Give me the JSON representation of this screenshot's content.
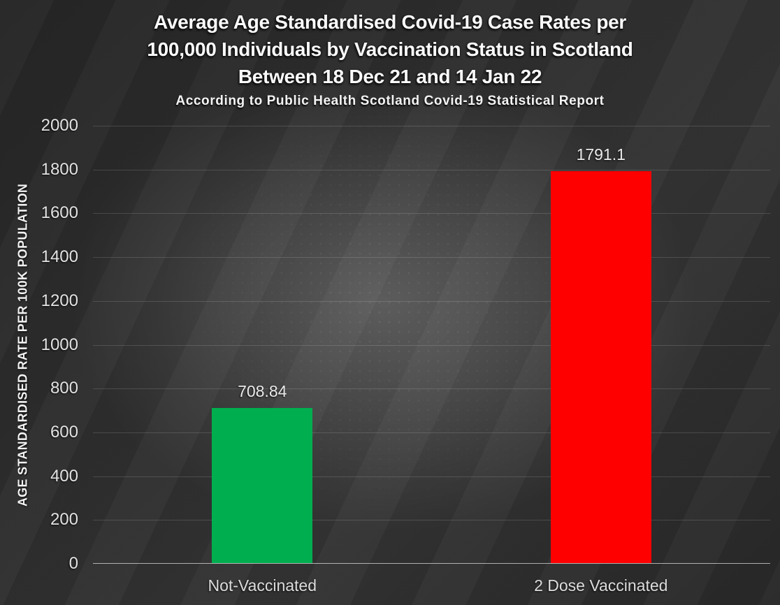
{
  "slide": {
    "title_lines": [
      "Average Age Standardised Covid-19 Case Rates per",
      "100,000 Individuals by Vaccination Status in Scotland",
      "Between 18 Dec 21 and 14 Jan 22"
    ],
    "subtitle": "According to Public Health Scotland Covid-19 Statistical Report"
  },
  "chart_data": {
    "type": "bar",
    "title": "Average Age Standardised Covid-19 Case Rates per 100,000 Individuals by Vaccination Status in Scotland Between 18 Dec 21 and 14 Jan 22",
    "subtitle": "According to Public Health Scotland Covid-19 Statistical Report",
    "categories": [
      "Not-Vaccinated",
      "2 Dose Vaccinated"
    ],
    "values": [
      708.84,
      1791.1
    ],
    "value_labels": [
      "708.84",
      "1791.1"
    ],
    "bar_colors": [
      "#00ae4f",
      "#ff0000"
    ],
    "xlabel": "",
    "ylabel": "AGE STANDARDISED RATE PER 100K POPULATION",
    "ylim": [
      0,
      2000
    ],
    "yticks": [
      0,
      200,
      400,
      600,
      800,
      1000,
      1200,
      1400,
      1600,
      1800,
      2000
    ],
    "grid": "horizontal",
    "legend": "none",
    "colors": {
      "background_center": "#5d5d5d",
      "background_corner": "#262626",
      "gridline": "rgba(255,255,255,0.14)",
      "axis_line": "#a6a6a6",
      "text": "#e6e6e6",
      "title_text": "#fbfbfb"
    }
  }
}
